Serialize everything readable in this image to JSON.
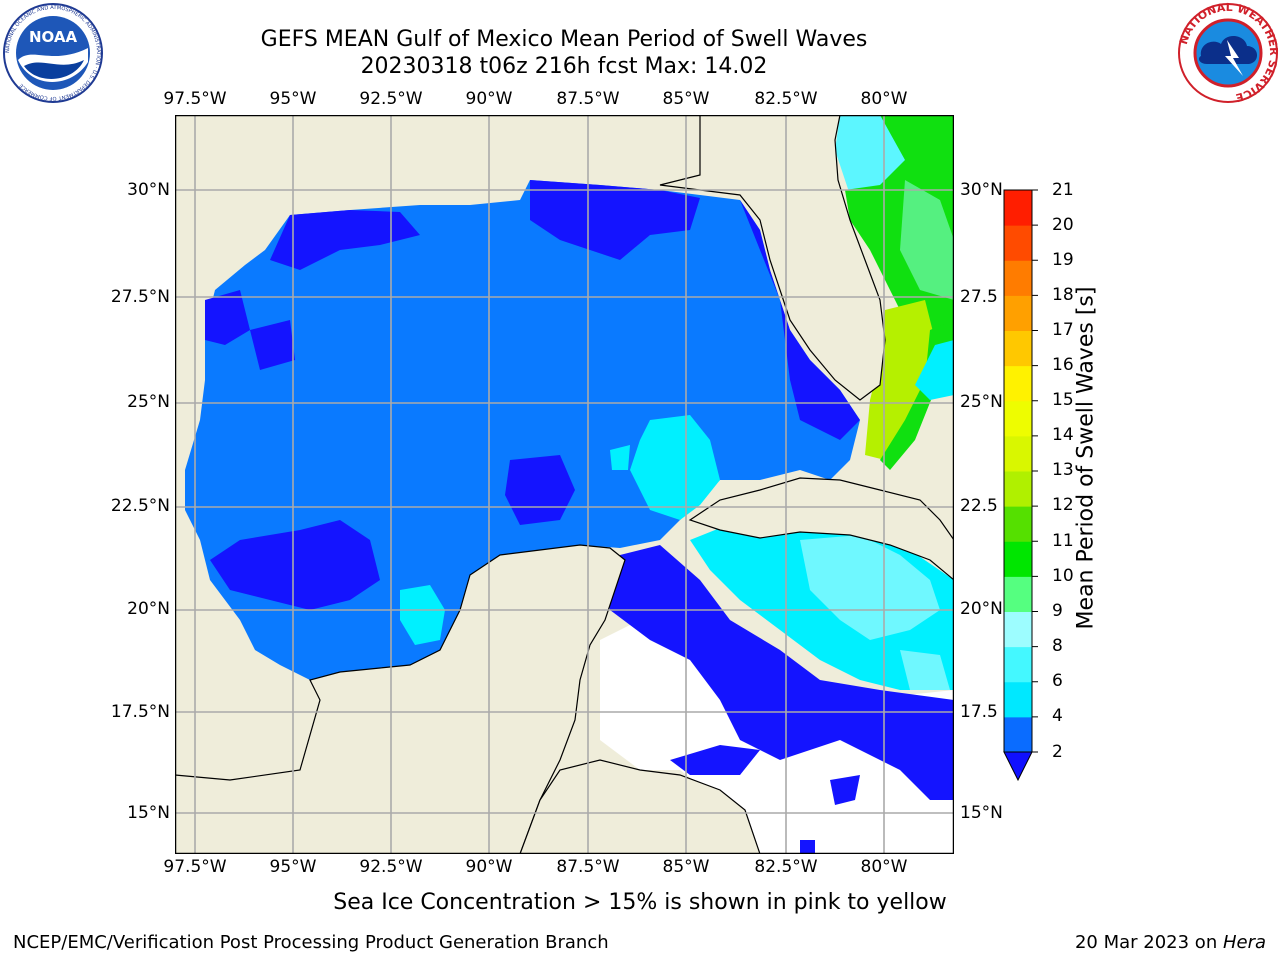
{
  "header": {
    "title_line1": "GEFS MEAN Gulf of Mexico Mean Period of Swell Waves",
    "title_line2": "20230318 t06z 216h fcst   Max: 14.02"
  },
  "logos": {
    "left": {
      "text": "NOAA",
      "ring": "NATIONAL OCEANIC AND ATMOSPHERIC ADMINISTRATION · U.S. DEPARTMENT OF COMMERCE"
    },
    "right": {
      "ring": "NATIONAL WEATHER SERVICE"
    }
  },
  "map": {
    "lon_labels": [
      "97.5°W",
      "95°W",
      "92.5°W",
      "90°W",
      "87.5°W",
      "85°W",
      "82.5°W",
      "80°W"
    ],
    "lat_labels_left": [
      "30°N",
      "27.5°N",
      "25°N",
      "22.5°N",
      "20°N",
      "17.5°N",
      "15°N"
    ],
    "lat_labels_right": [
      "30°N",
      "27.5",
      "25°N",
      "22.5",
      "20°N",
      "17.5",
      "15°N"
    ],
    "colors": {
      "land": "#efedda",
      "ocean_main": "#0a7aff",
      "ocean_dark": "#1414ff",
      "cyan": "#00f0ff",
      "light_cyan": "#5cf6ff",
      "green_land_swell": "#b5f000"
    }
  },
  "colorbar": {
    "label": "Mean Period of Swell Waves [s]",
    "ticks": [
      "2",
      "4",
      "6",
      "8",
      "9",
      "10",
      "11",
      "12",
      "13",
      "14",
      "15",
      "16",
      "17",
      "18",
      "19",
      "20",
      "21"
    ],
    "colors": [
      "#0a6cff",
      "#00e8ff",
      "#44f8ff",
      "#9dfdff",
      "#55ff80",
      "#00e600",
      "#55e000",
      "#b0f000",
      "#d9f700",
      "#eefd00",
      "#fff200",
      "#ffc800",
      "#ffa000",
      "#ff7c00",
      "#ff4b00",
      "#ff1e00"
    ],
    "extend_color": "#1010ff"
  },
  "note": "Sea Ice Concentration > 15% is shown in pink to yellow",
  "footer": {
    "left": "NCEP/EMC/Verification Post Processing Product Generation Branch",
    "right_prefix": "20 Mar 2023 on ",
    "right_host": "Hera"
  }
}
